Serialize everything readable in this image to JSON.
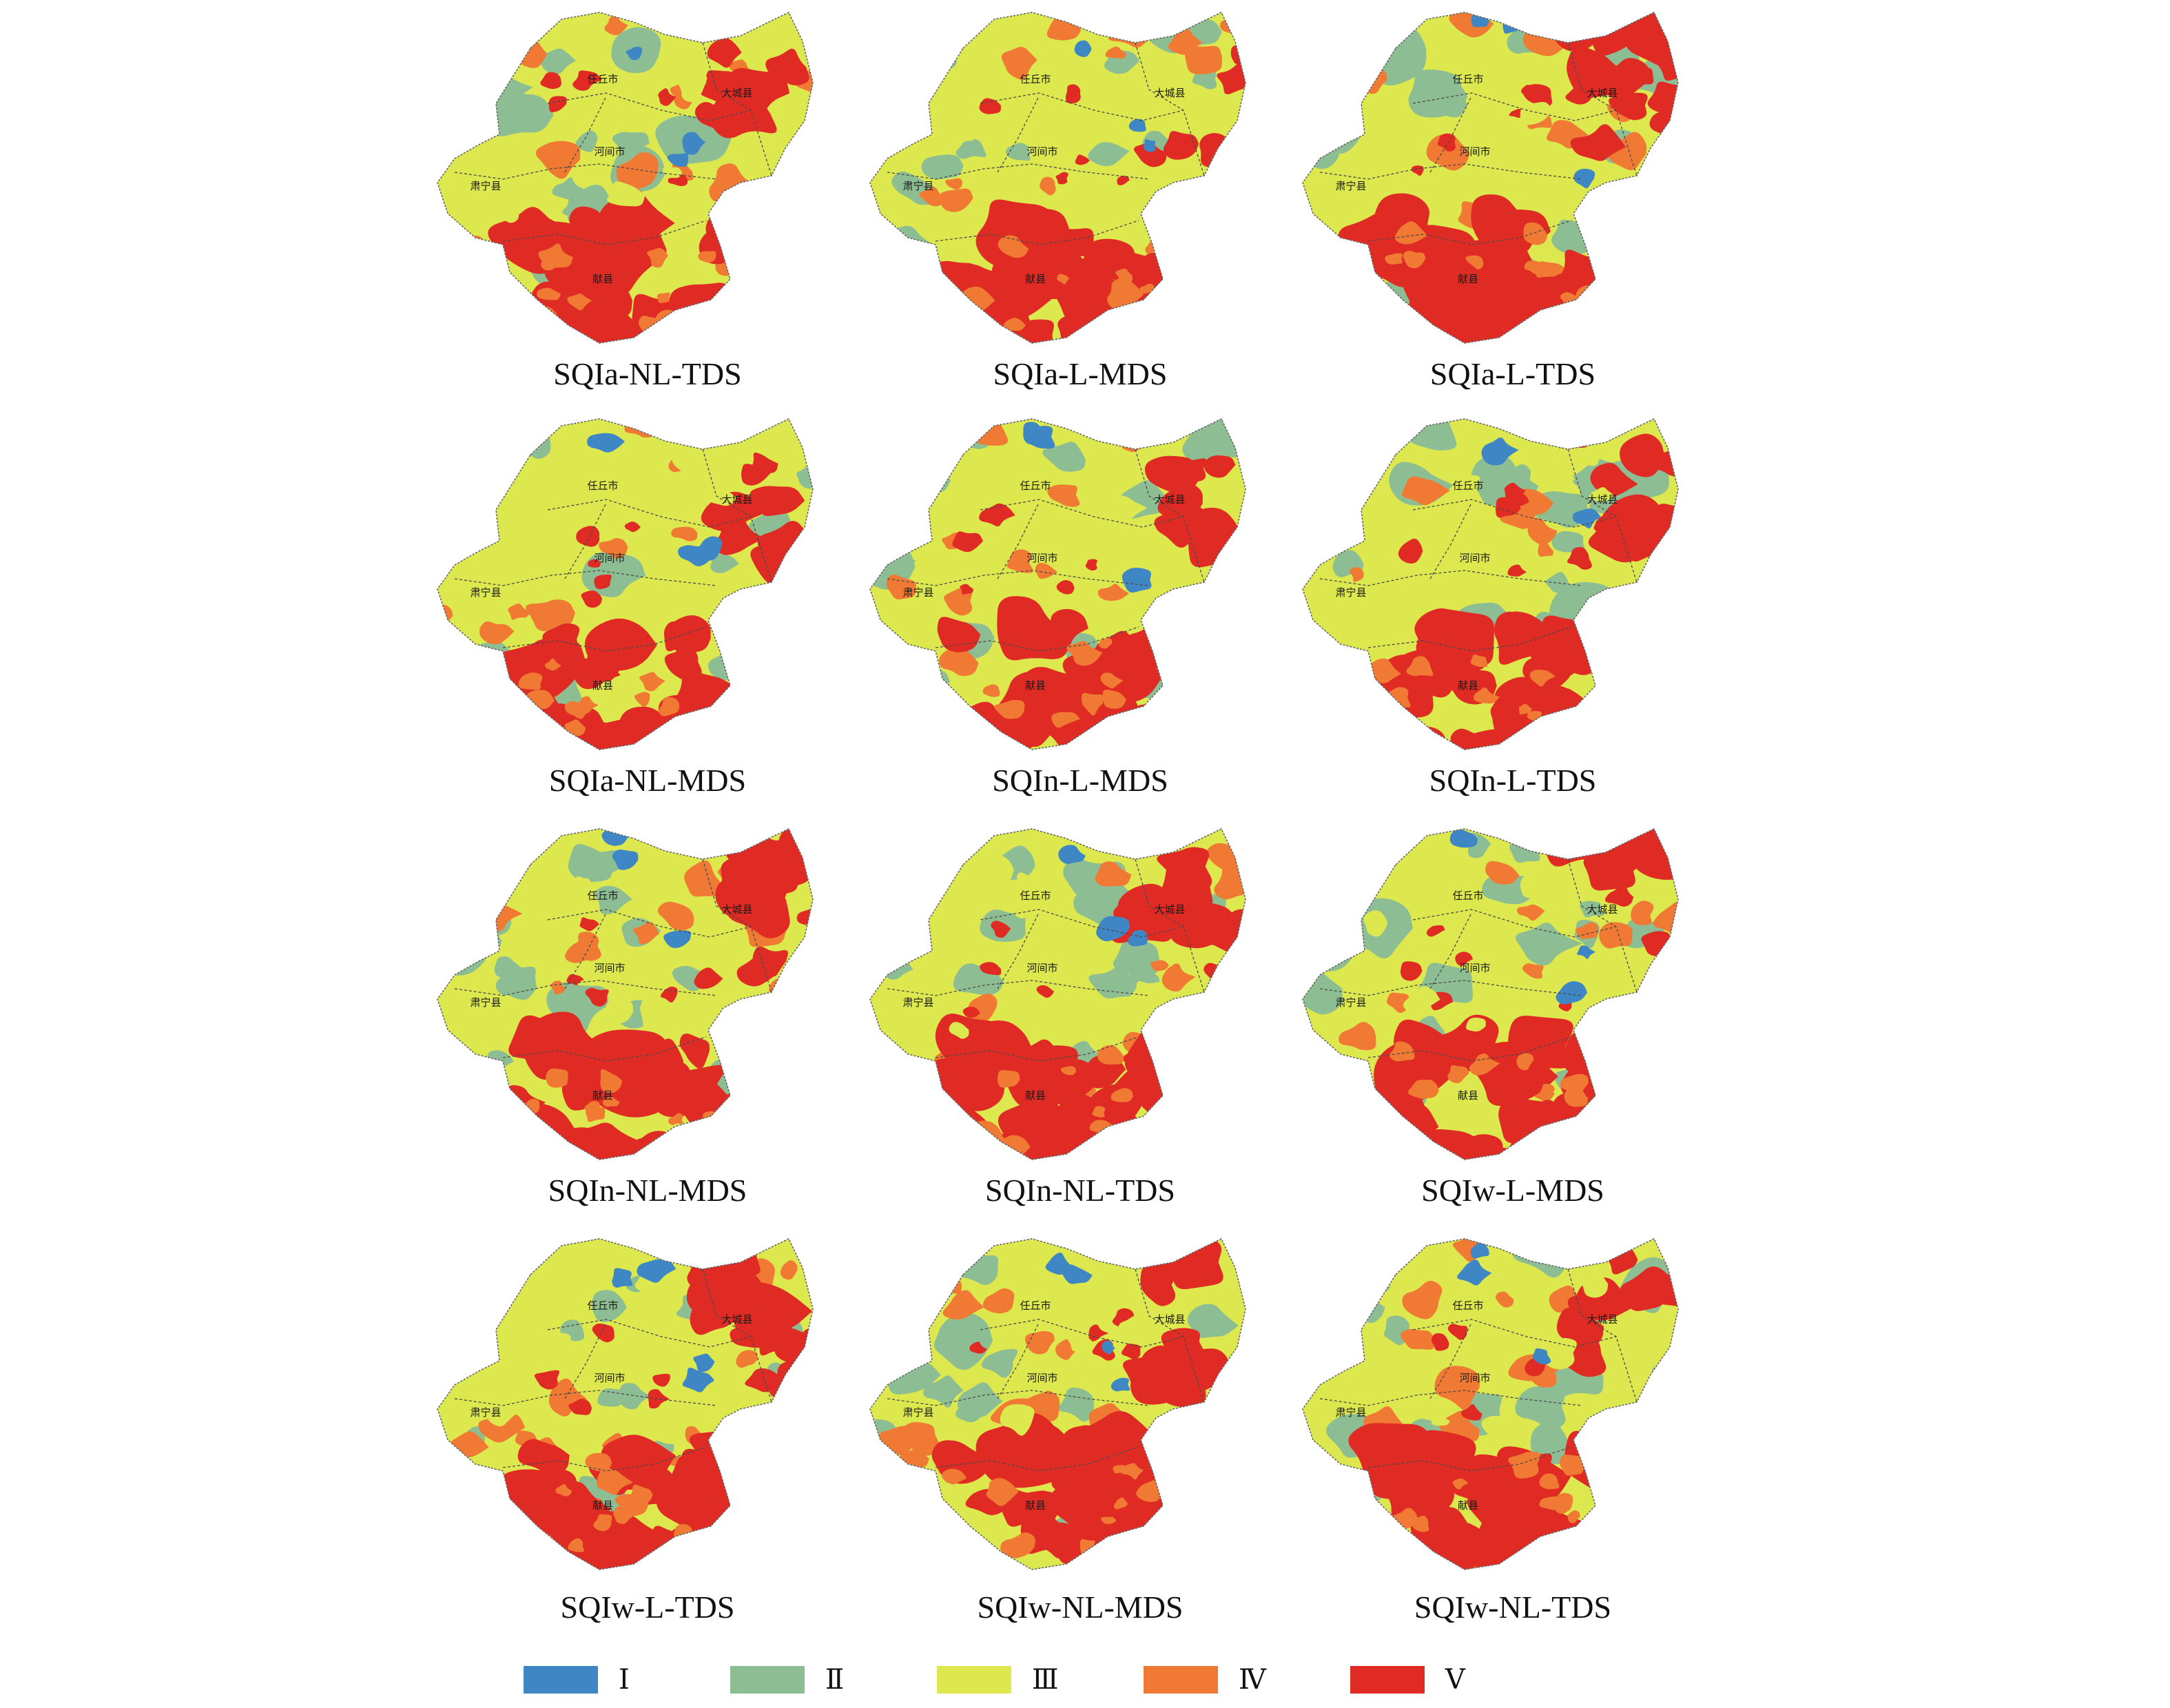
{
  "legend": [
    {
      "label": "Ⅰ",
      "color": "#3f86c4"
    },
    {
      "label": "Ⅱ",
      "color": "#8dbd93"
    },
    {
      "label": "Ⅲ",
      "color": "#dce84e"
    },
    {
      "label": "Ⅳ",
      "color": "#f07a33"
    },
    {
      "label": "Ⅴ",
      "color": "#e02b25"
    }
  ],
  "maps": [
    {
      "caption": "SQIa-NL-TDS",
      "towns": [
        "任丘市",
        "大城县",
        "河间市",
        "肃宁县",
        "献县"
      ]
    },
    {
      "caption": "SQIa-L-MDS",
      "towns": [
        "任丘市",
        "大城县",
        "河间市",
        "肃宁县",
        "献县"
      ]
    },
    {
      "caption": "SQIa-L-TDS",
      "towns": [
        "任丘市",
        "大城县",
        "河间市",
        "肃宁县",
        "献县"
      ]
    },
    {
      "caption": "SQIa-NL-MDS",
      "towns": [
        "任丘市",
        "大城县",
        "河间市",
        "肃宁县",
        "献县"
      ]
    },
    {
      "caption": "SQIn-L-MDS",
      "towns": [
        "任丘市",
        "大城县",
        "河间市",
        "肃宁县",
        "献县"
      ]
    },
    {
      "caption": "SQIn-L-TDS",
      "towns": [
        "任丘市",
        "大城县",
        "河间市",
        "肃宁县",
        "献县"
      ]
    },
    {
      "caption": "SQIn-NL-MDS",
      "towns": [
        "任丘市",
        "大城县",
        "河间市",
        "肃宁县",
        "献县"
      ]
    },
    {
      "caption": "SQIn-NL-TDS",
      "towns": [
        "任丘市",
        "大城县",
        "河间市",
        "肃宁县",
        "献县"
      ]
    },
    {
      "caption": "SQIw-L-MDS",
      "towns": [
        "任丘市",
        "大城县",
        "河间市",
        "肃宁县",
        "献县"
      ]
    },
    {
      "caption": "SQIw-L-TDS",
      "towns": [
        "任丘市",
        "大城县",
        "河间市",
        "肃宁县",
        "献县"
      ]
    },
    {
      "caption": "SQIw-NL-MDS",
      "towns": [
        "任丘市",
        "大城县",
        "河间市",
        "肃宁县",
        "献县"
      ]
    },
    {
      "caption": "SQIw-NL-TDS",
      "towns": [
        "任丘市",
        "大城县",
        "河间市",
        "肃宁县",
        "献县"
      ]
    }
  ]
}
